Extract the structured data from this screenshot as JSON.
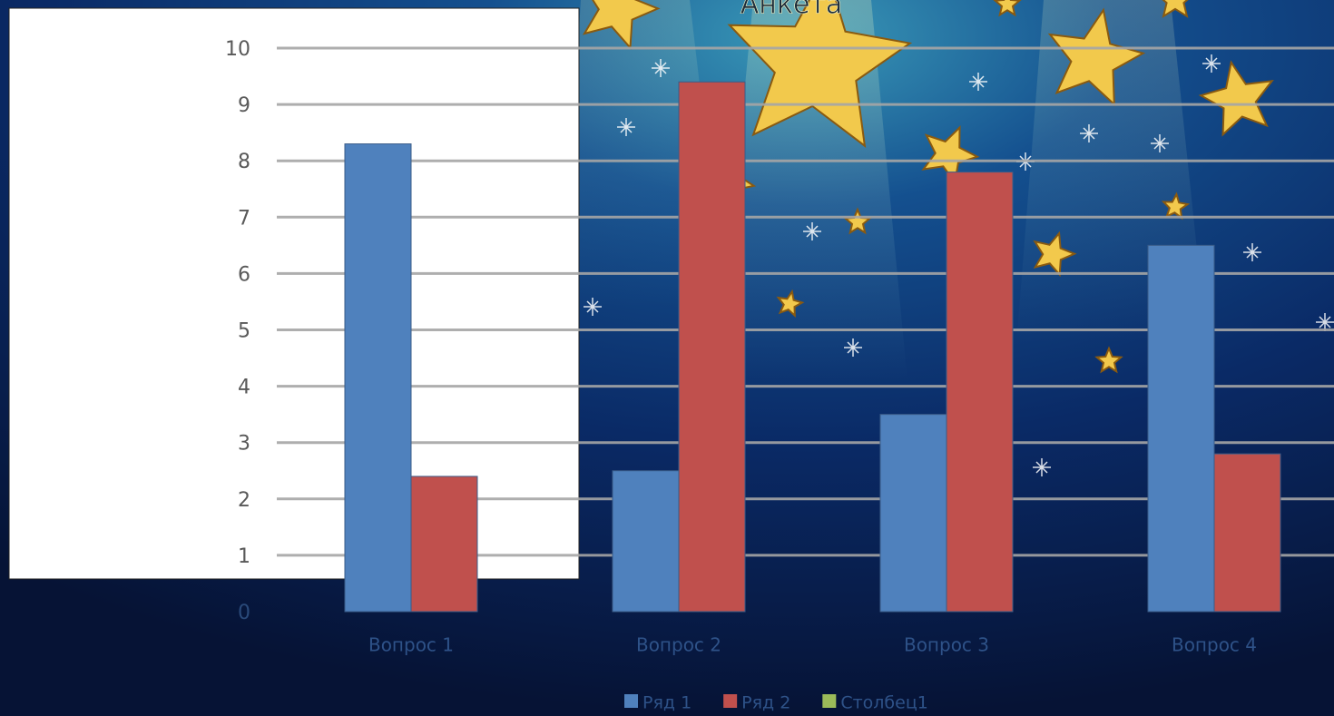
{
  "chart_data": {
    "type": "bar",
    "title": "Анкета",
    "categories": [
      "Вопрос 1",
      "Вопрос 2",
      "Вопрос 3",
      "Вопрос 4"
    ],
    "series": [
      {
        "name": "Ряд 1",
        "color": "#4f81bd",
        "values": [
          8.3,
          2.5,
          3.5,
          6.5
        ]
      },
      {
        "name": "Ряд 2",
        "color": "#c0504d",
        "values": [
          2.4,
          9.4,
          7.8,
          2.8
        ]
      },
      {
        "name": "Столбец1",
        "color": "#9bbb59",
        "values": [
          null,
          null,
          null,
          null
        ]
      }
    ],
    "ylim": [
      0,
      10
    ],
    "yticks": [
      0,
      1,
      2,
      3,
      4,
      5,
      6,
      7,
      8,
      9,
      10
    ],
    "grid": true,
    "legend": "bottom"
  }
}
